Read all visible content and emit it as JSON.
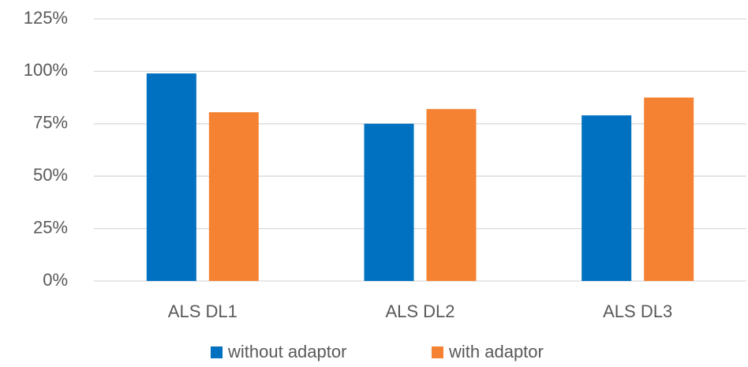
{
  "chart_data": {
    "type": "bar",
    "categories": [
      "ALS DL1",
      "ALS DL2",
      "ALS DL3"
    ],
    "series": [
      {
        "name": "without adaptor",
        "color": "#0070c0",
        "values": [
          99,
          75,
          79
        ]
      },
      {
        "name": "with adaptor",
        "color": "#f58232",
        "values": [
          80.5,
          82,
          87.5
        ]
      }
    ],
    "ylim": [
      0,
      125
    ],
    "yticks": [
      {
        "value": 0,
        "label": "0%"
      },
      {
        "value": 25,
        "label": "25%"
      },
      {
        "value": 50,
        "label": "50%"
      },
      {
        "value": 75,
        "label": "75%"
      },
      {
        "value": 100,
        "label": "100%"
      },
      {
        "value": 125,
        "label": "125%"
      }
    ],
    "grid": true,
    "legend": "bottom"
  }
}
